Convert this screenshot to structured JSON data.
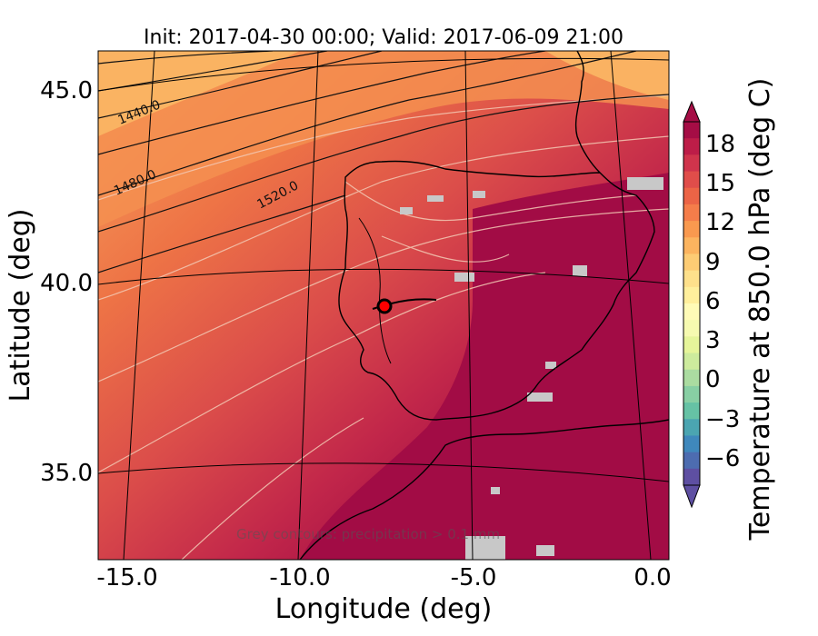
{
  "title": "Init: 2017-04-30 00:00; Valid: 2017-06-09 21:00",
  "xlabel": "Longitude (deg)",
  "ylabel": "Latitude (deg)",
  "x_ticks": [
    "-15.0",
    "-10.0",
    "-5.0",
    "0.0"
  ],
  "y_ticks": [
    "45.0",
    "40.0",
    "35.0"
  ],
  "colorbar": {
    "label": "Temperature at 850.0 hPa (deg C)",
    "ticks": [
      "18",
      "15",
      "12",
      "9",
      "6",
      "3",
      "0",
      "−3",
      "−6"
    ],
    "colors": [
      "#a50d45",
      "#bd1d48",
      "#d0344c",
      "#e04d4a",
      "#ec6446",
      "#f57d4a",
      "#f9994f",
      "#fcb45f",
      "#fdcc74",
      "#fee08b",
      "#ffef9c",
      "#fffbb7",
      "#f6fab0",
      "#e6f59a",
      "#cdeb9d",
      "#abdca1",
      "#88cfa4",
      "#66c2a5",
      "#4ba5b1",
      "#3f88bc",
      "#4d6cb0",
      "#5e4fa2"
    ]
  },
  "contour_labels": [
    "1440.0",
    "1480.0",
    "1520.0"
  ],
  "annotation": "Grey contours: precipitation > 0.1 mm",
  "marker": {
    "lon": -7.6,
    "lat": 39.3,
    "color": "#ff0000"
  },
  "colors": {
    "cool_band": "#f7a05c",
    "mid_band": "#e96545",
    "warm_band": "#c7314a",
    "hot_band": "#a20c45",
    "precip": "#c8c8c8"
  }
}
